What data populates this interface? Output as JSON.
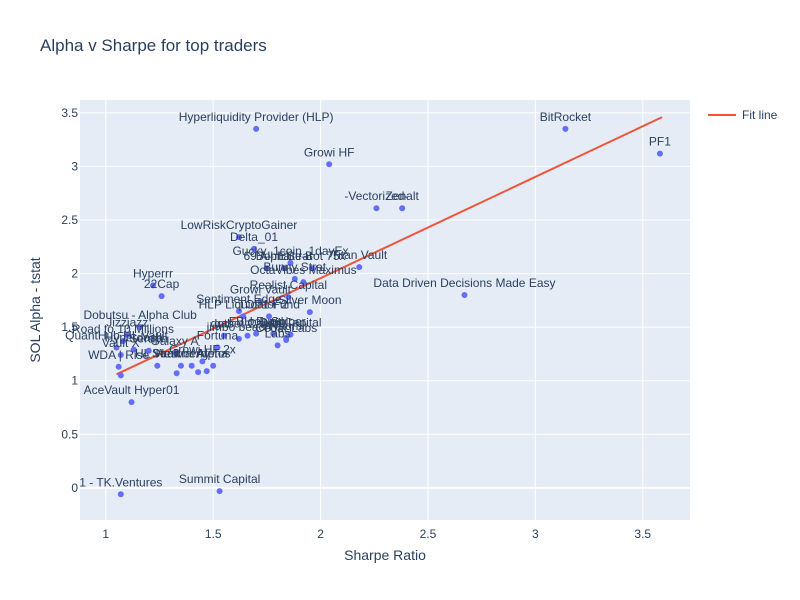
{
  "chart_data": {
    "type": "scatter",
    "title": "Alpha v Sharpe for top traders",
    "xlabel": "Sharpe Ratio",
    "ylabel": "SOL Alpha - tstat",
    "xlim": [
      0.88,
      3.72
    ],
    "ylim": [
      -0.3,
      3.62
    ],
    "xticks": [
      1,
      1.5,
      2,
      2.5,
      3,
      3.5
    ],
    "xtick_labels": [
      "1",
      "1.5",
      "2",
      "2.5",
      "3",
      "3.5"
    ],
    "yticks": [
      0,
      0.5,
      1,
      1.5,
      2,
      2.5,
      3,
      3.5
    ],
    "ytick_labels": [
      "0",
      "0.5",
      "1",
      "1.5",
      "2",
      "2.5",
      "3",
      "3.5"
    ],
    "grid": true,
    "legend_position": "top-right",
    "point_color": "#636efa",
    "fit_color": "#ef553b",
    "plot_bg": "#e5ecf6",
    "points": [
      {
        "x": 1.7,
        "y": 3.35,
        "label": "Hyperliquidity Provider (HLP)"
      },
      {
        "x": 3.14,
        "y": 3.35,
        "label": "BitRocket"
      },
      {
        "x": 3.58,
        "y": 3.12,
        "label": "PF1"
      },
      {
        "x": 2.04,
        "y": 3.02,
        "label": "Growi HF"
      },
      {
        "x": 2.26,
        "y": 2.61,
        "label": "-Vectorized-"
      },
      {
        "x": 2.38,
        "y": 2.61,
        "label": "Zenalt"
      },
      {
        "x": 1.62,
        "y": 2.34,
        "label": "LowRiskCryptoGainer"
      },
      {
        "x": 1.69,
        "y": 2.23,
        "label": "Delta_01"
      },
      {
        "x": 1.86,
        "y": 2.1,
        "label": "Gucky_1coin_1dayEx"
      },
      {
        "x": 2.18,
        "y": 2.06,
        "label": "Titan Vault"
      },
      {
        "x": 1.75,
        "y": 2.05,
        "label": "69 Alpha"
      },
      {
        "x": 1.83,
        "y": 2.05,
        "label": "Bohn Strat"
      },
      {
        "x": 1.96,
        "y": 2.05,
        "label": "Elite Bot 75x"
      },
      {
        "x": 1.88,
        "y": 1.95,
        "label": "Bunny Strat"
      },
      {
        "x": 1.22,
        "y": 1.89,
        "label": "Hyperrr"
      },
      {
        "x": 1.92,
        "y": 1.92,
        "label": "OctaVibes Maximus"
      },
      {
        "x": 2.67,
        "y": 1.8,
        "label": "Data Driven Decisions Made Easy"
      },
      {
        "x": 1.26,
        "y": 1.79,
        "label": "22Cap"
      },
      {
        "x": 1.85,
        "y": 1.78,
        "label": "Realist Capital"
      },
      {
        "x": 1.72,
        "y": 1.74,
        "label": "Growi Vault"
      },
      {
        "x": 1.95,
        "y": 1.64,
        "label": "Silver Moon"
      },
      {
        "x": 1.62,
        "y": 1.65,
        "label": "Sentiment Edge"
      },
      {
        "x": 1.76,
        "y": 1.6,
        "label": "TOP1 Fund"
      },
      {
        "x": 1.64,
        "y": 1.6,
        "label": "HLP Liquidator 2"
      },
      {
        "x": 1.16,
        "y": 1.5,
        "label": "Dobutsu - Alpha Club"
      },
      {
        "x": 1.7,
        "y": 1.44,
        "label": "FBH Fund"
      },
      {
        "x": 1.78,
        "y": 1.44,
        "label": "Loop Sniper"
      },
      {
        "x": 1.86,
        "y": 1.43,
        "label": "Defi Capital"
      },
      {
        "x": 1.1,
        "y": 1.43,
        "label": "Jizzjazz"
      },
      {
        "x": 1.55,
        "y": 1.42,
        "label": "gas"
      },
      {
        "x": 1.66,
        "y": 1.42,
        "label": "dotbet Capital"
      },
      {
        "x": 1.84,
        "y": 1.4,
        "label": "Wagmi"
      },
      {
        "x": 1.62,
        "y": 1.39,
        "label": "jimbo beach"
      },
      {
        "x": 1.84,
        "y": 1.38,
        "label": "Cedar Labs"
      },
      {
        "x": 1.08,
        "y": 1.37,
        "label": "Road to 10 Millions"
      },
      {
        "x": 1.8,
        "y": 1.33,
        "label": "Labs"
      },
      {
        "x": 1.05,
        "y": 1.31,
        "label": "QuantHub HL Vault"
      },
      {
        "x": 1.52,
        "y": 1.31,
        "label": "Fortuna"
      },
      {
        "x": 1.13,
        "y": 1.29,
        "label": "Hyperdash"
      },
      {
        "x": 1.2,
        "y": 1.28,
        "label": "Seraph"
      },
      {
        "x": 1.32,
        "y": 1.26,
        "label": "Galaxy A"
      },
      {
        "x": 1.07,
        "y": 1.24,
        "label": "Vault X"
      },
      {
        "x": 1.45,
        "y": 1.18,
        "label": "Growi HF 2x"
      },
      {
        "x": 1.06,
        "y": 1.13,
        "label": "WDA | Rise"
      },
      {
        "x": 1.24,
        "y": 1.14,
        "label": "HL Vault"
      },
      {
        "x": 1.35,
        "y": 1.14,
        "label": "Strawberry"
      },
      {
        "x": 1.4,
        "y": 1.14,
        "label": "Neutral Alpha"
      },
      {
        "x": 1.5,
        "y": 1.14,
        "label": "Aretos"
      },
      {
        "x": 1.07,
        "y": 1.05,
        "label": ""
      },
      {
        "x": 1.33,
        "y": 1.07,
        "label": ""
      },
      {
        "x": 1.43,
        "y": 1.08,
        "label": ""
      },
      {
        "x": 1.47,
        "y": 1.09,
        "label": ""
      },
      {
        "x": 1.12,
        "y": 0.8,
        "label": "AceVault Hyper01"
      },
      {
        "x": 1.07,
        "y": -0.06,
        "label": "1 - TK.Ventures"
      },
      {
        "x": 1.53,
        "y": -0.03,
        "label": "Summit Capital"
      }
    ],
    "fit_line": {
      "name": "Fit line",
      "x": [
        1.05,
        3.59
      ],
      "y": [
        1.06,
        3.46
      ]
    }
  }
}
